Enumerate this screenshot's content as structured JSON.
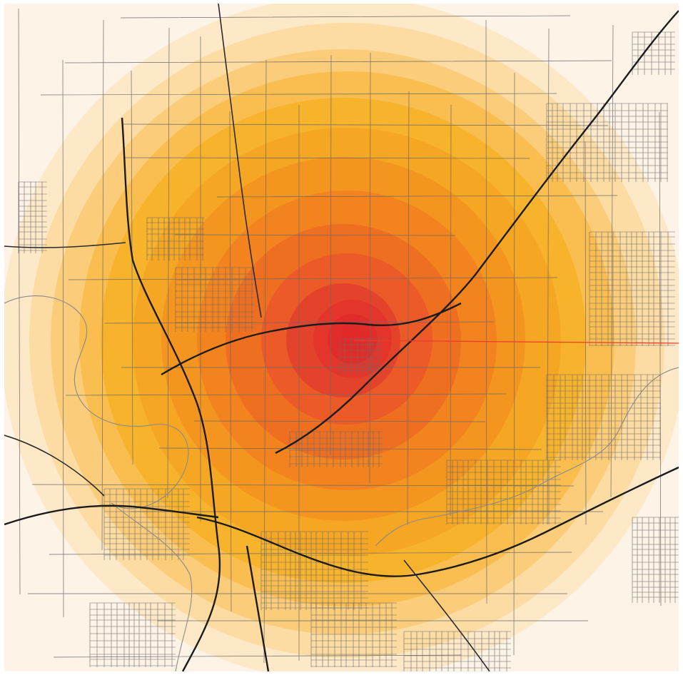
{
  "map": {
    "kind": "radial heat map over street map",
    "base_color": "#fdf3e6",
    "ring_colors": [
      "#fde9c8",
      "#fcdca3",
      "#fbcd7a",
      "#f9be4f",
      "#f7b32b",
      "#f5a623",
      "#f4951f",
      "#f2831e",
      "#ef6f21",
      "#eb5a27",
      "#e4432b"
    ],
    "center_color": "#e22a2a",
    "marker_line_color": "#ef3b2c",
    "road_colors": {
      "minor": "#6a6a6a",
      "major": "#2b2b2b"
    }
  }
}
